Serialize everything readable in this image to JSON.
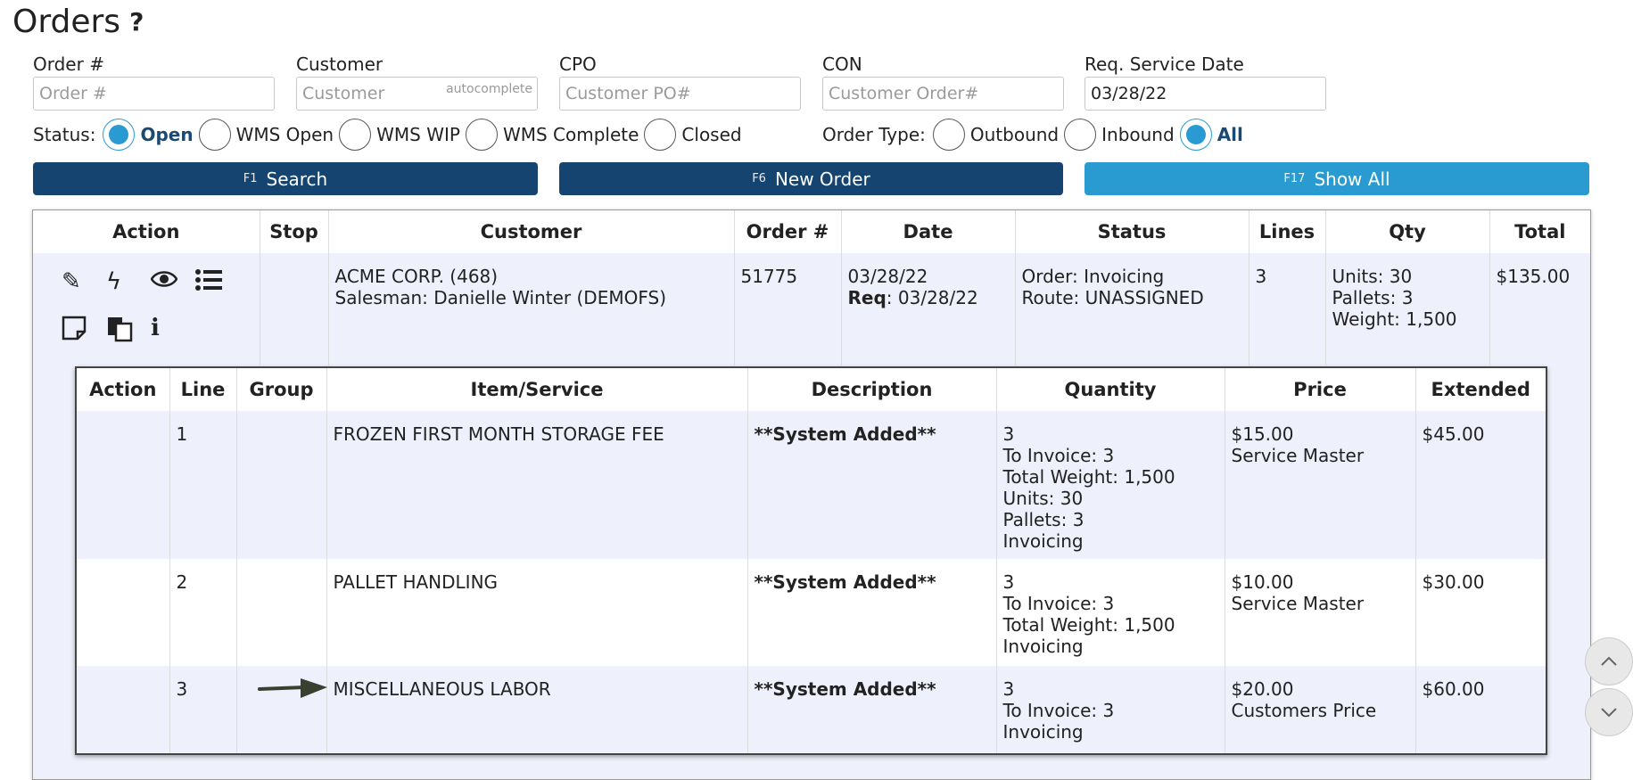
{
  "header": {
    "title": "Orders",
    "help": "?"
  },
  "filters": {
    "order_no": {
      "label": "Order #",
      "placeholder": "Order #",
      "value": ""
    },
    "customer": {
      "label": "Customer",
      "placeholder": "Customer",
      "value": "",
      "hint": "autocomplete"
    },
    "cpo": {
      "label": "CPO",
      "placeholder": "Customer PO#",
      "value": ""
    },
    "con": {
      "label": "CON",
      "placeholder": "Customer Order#",
      "value": ""
    },
    "req_date": {
      "label": "Req. Service Date",
      "placeholder": "",
      "value": "03/28/22"
    }
  },
  "status": {
    "label": "Status:",
    "options": [
      "Open",
      "WMS Open",
      "WMS WIP",
      "WMS Complete",
      "Closed"
    ],
    "selected": "Open"
  },
  "order_type": {
    "label": "Order Type:",
    "options": [
      "Outbound",
      "Inbound",
      "All"
    ],
    "selected": "All"
  },
  "buttons": {
    "search": {
      "key": "F1",
      "label": "Search"
    },
    "new_order": {
      "key": "F6",
      "label": "New Order"
    },
    "show_all": {
      "key": "F17",
      "label": "Show All"
    }
  },
  "orders": {
    "columns": [
      "Action",
      "Stop",
      "Customer",
      "Order #",
      "Date",
      "Status",
      "Lines",
      "Qty",
      "Total"
    ],
    "row": {
      "stop": "",
      "customer_name": "ACME CORP. (468)",
      "salesman": "Salesman: Danielle Winter (DEMOFS)",
      "order_no": "51775",
      "date": "03/28/22",
      "req_label": "Req",
      "req_date": ": 03/28/22",
      "status_order": "Order: Invoicing",
      "status_route": "Route: UNASSIGNED",
      "lines": "3",
      "qty_units": "Units: 30",
      "qty_pallets": "Pallets: 3",
      "qty_weight": "Weight: 1,500",
      "total": "$135.00"
    },
    "action_icons": [
      "pencil-icon",
      "bolt-icon",
      "eye-icon",
      "list-icon",
      "note-icon",
      "copy-icon",
      "info-icon"
    ]
  },
  "lines": {
    "columns": [
      "Action",
      "Line",
      "Group",
      "Item/Service",
      "Description",
      "Quantity",
      "Price",
      "Extended"
    ],
    "rows": [
      {
        "line": "1",
        "group": "",
        "item": "FROZEN FIRST MONTH STORAGE FEE",
        "description": "**System Added**",
        "quantity": [
          "3",
          "To Invoice: 3",
          "Total Weight: 1,500",
          "Units: 30",
          "Pallets: 3",
          "Invoicing"
        ],
        "price": "$15.00",
        "price_source": "Service Master",
        "extended": "$45.00"
      },
      {
        "line": "2",
        "group": "",
        "item": "PALLET HANDLING",
        "description": "**System Added**",
        "quantity": [
          "3",
          "To Invoice: 3",
          "Total Weight: 1,500",
          "Invoicing"
        ],
        "price": "$10.00",
        "price_source": "Service Master",
        "extended": "$30.00"
      },
      {
        "line": "3",
        "group": "",
        "item": "MISCELLANEOUS LABOR",
        "description": "**System Added**",
        "quantity": [
          "3",
          "To Invoice: 3",
          "Invoicing"
        ],
        "price": "$20.00",
        "price_source": "Customers Price",
        "extended": "$60.00"
      }
    ]
  },
  "colors": {
    "dark_button": "#154470",
    "light_button": "#2a9bd0",
    "radio_selected": "#2a9bd2",
    "row_tint": "#eef0fb"
  }
}
